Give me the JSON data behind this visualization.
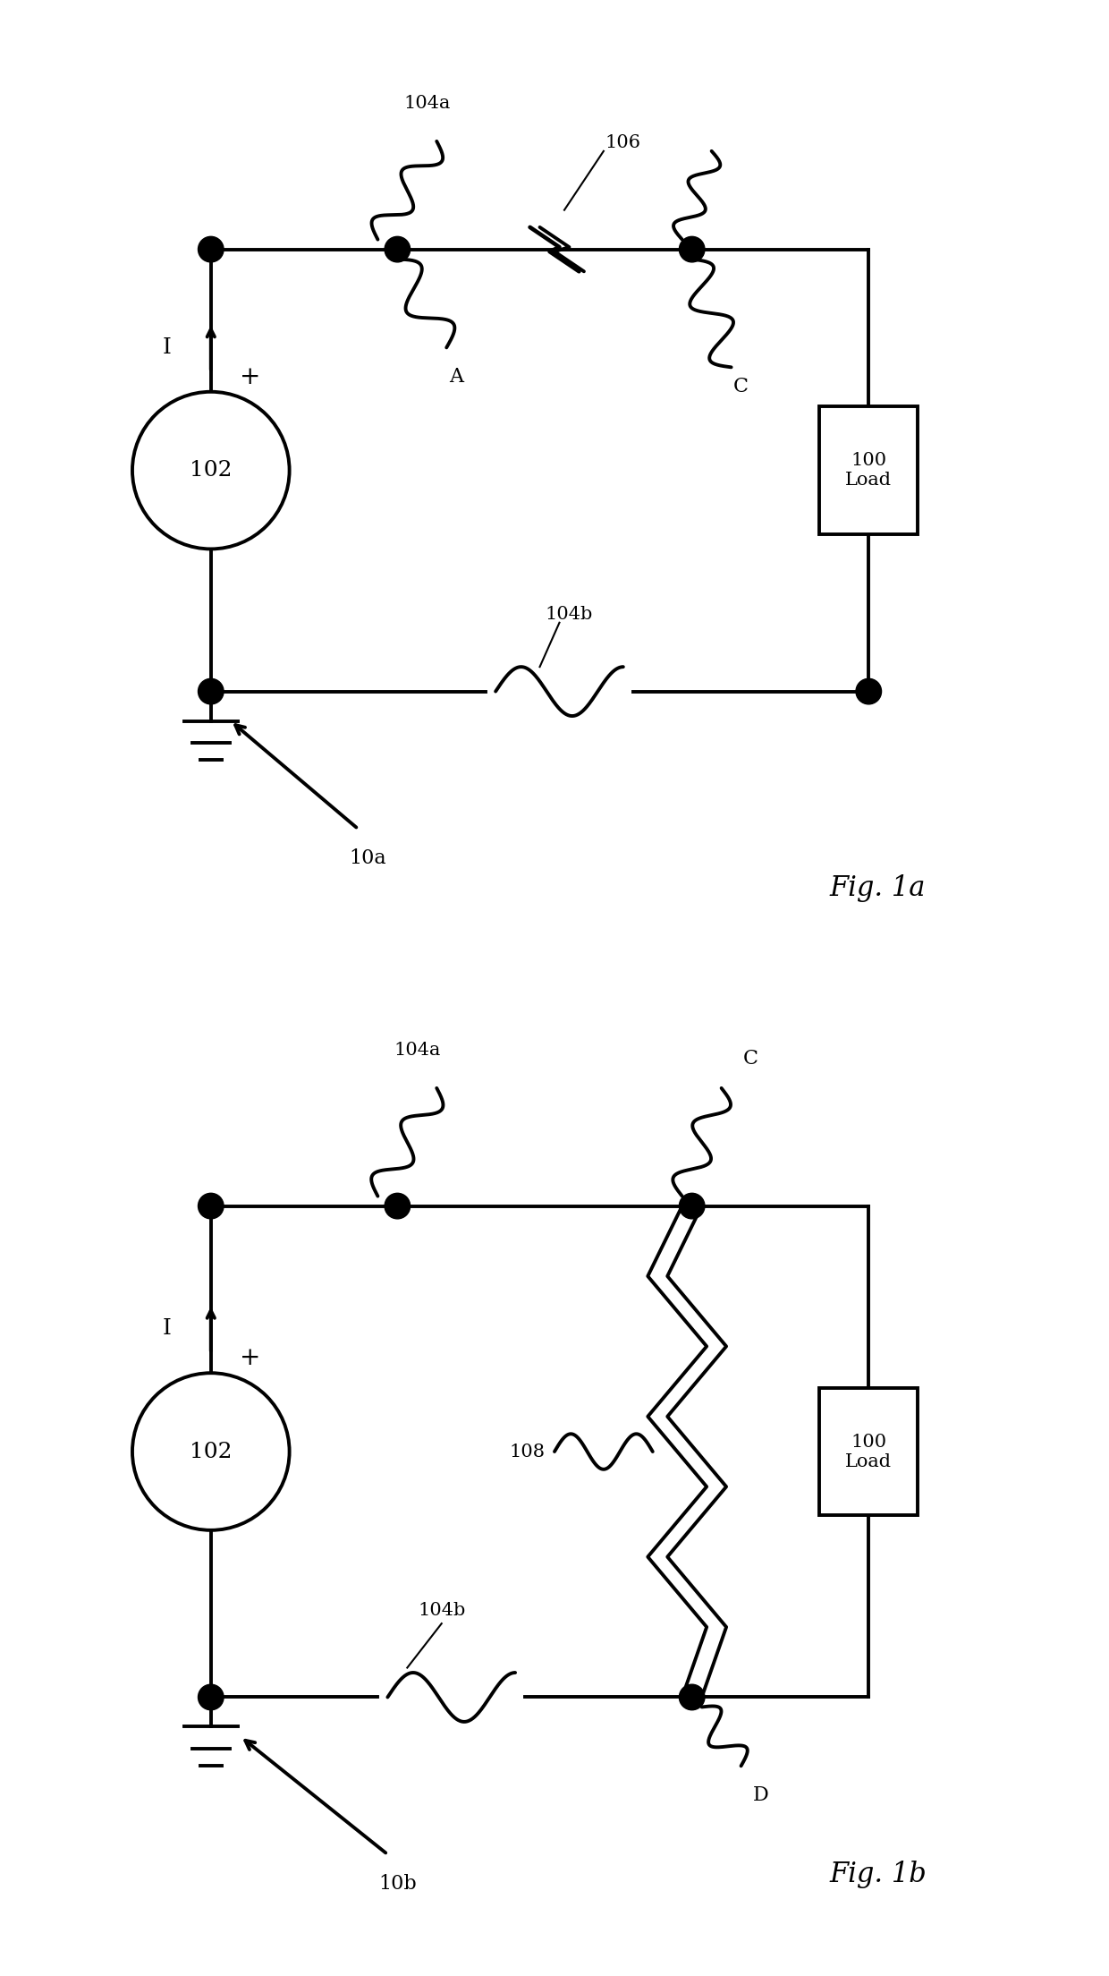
{
  "bg_color": "#ffffff",
  "line_color": "#000000",
  "line_width": 2.8,
  "fig1a": {
    "title": "Fig. 1a",
    "label": "10a",
    "circuit_label": "102",
    "load_label": "100\nLoad",
    "switch_a_label": "104a",
    "switch_b_label": "104b",
    "arc_label": "106",
    "node_a_label": "A",
    "node_c_label": "C",
    "current_label": "I",
    "plus_label": "+"
  },
  "fig1b": {
    "title": "Fig. 1b",
    "label": "10b",
    "circuit_label": "102",
    "load_label": "100\nLoad",
    "switch_a_label": "104a",
    "switch_b_label": "104b",
    "arc_label_108": "108",
    "node_c_label": "C",
    "node_d_label": "D",
    "current_label": "I",
    "plus_label": "+"
  }
}
